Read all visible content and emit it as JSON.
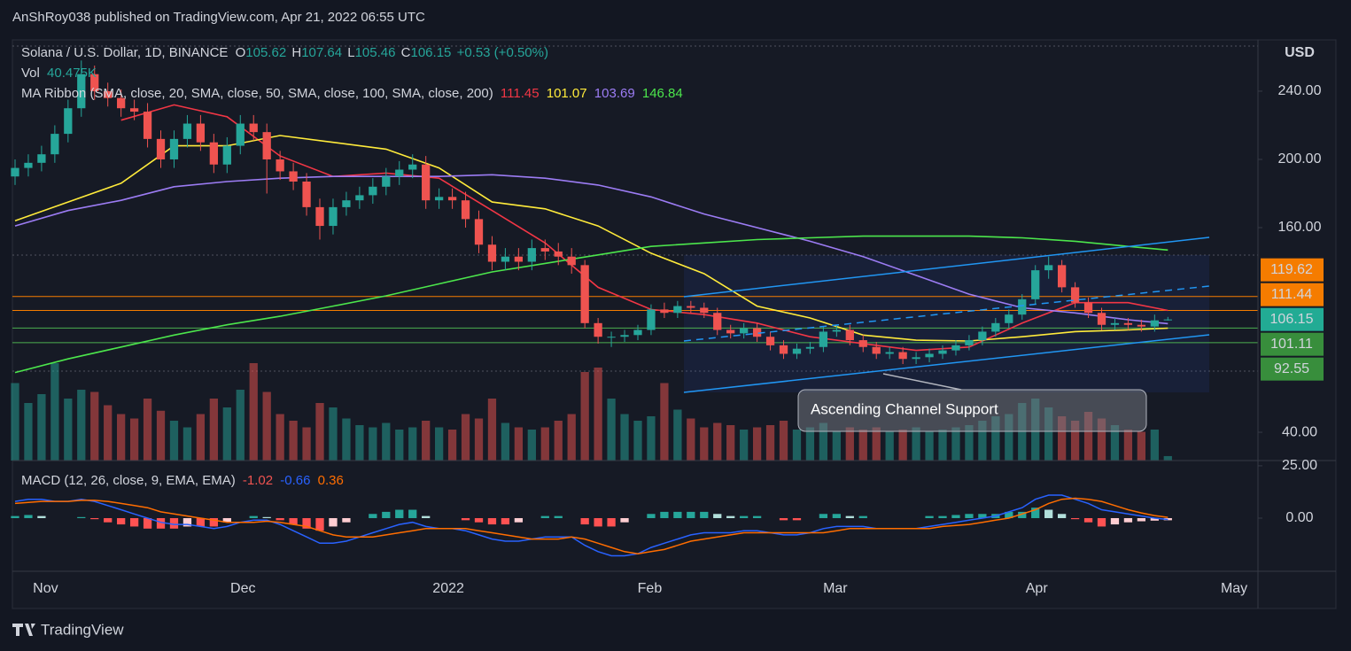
{
  "header": {
    "published": "AnShRoy038 published on TradingView.com, Apr 21, 2022 06:55 UTC"
  },
  "footer": {
    "brand": "TradingView"
  },
  "chart_data": [
    {
      "type": "candlestick",
      "title": "Solana / U.S. Dollar, 1D, BINANCE",
      "currency": "USD",
      "ohlc_letters": [
        "O",
        "H",
        "L",
        "C"
      ],
      "change": "+0.53 (+0.50%)",
      "colors": {
        "up": "#26a69a",
        "down": "#ef5350"
      },
      "xlim": [
        -0.2,
        93.8
      ],
      "xticks": [
        {
          "value": 2.3,
          "label": "Nov"
        },
        {
          "value": 17.2,
          "label": "Dec"
        },
        {
          "value": 32.7,
          "label": "2022"
        },
        {
          "value": 47.9,
          "label": "Feb"
        },
        {
          "value": 61.9,
          "label": "Mar"
        },
        {
          "value": 77.1,
          "label": "Apr"
        },
        {
          "value": 92.0,
          "label": "May"
        }
      ],
      "ylim": [
        23.4,
        270.1
      ],
      "yticks": [
        {
          "value": 240,
          "label": "240.00"
        },
        {
          "value": 200,
          "label": "200.00"
        },
        {
          "value": 160,
          "label": "160.00"
        },
        {
          "value": 40,
          "label": "40.00"
        }
      ],
      "open": [
        190,
        195,
        198,
        203,
        215,
        230,
        250,
        240,
        236,
        230,
        228,
        212,
        200,
        212,
        221,
        210,
        197,
        208,
        221,
        216,
        200,
        193,
        187,
        172,
        161,
        172,
        176,
        179,
        184,
        190,
        194,
        197,
        176,
        178,
        176,
        165,
        150,
        140,
        143,
        140,
        148,
        146,
        143,
        138,
        104,
        96,
        96,
        97,
        100,
        112,
        110,
        114,
        113,
        110,
        100,
        98,
        101,
        96,
        91,
        86,
        89,
        90,
        99,
        100,
        94,
        90,
        86,
        87,
        83,
        84,
        86,
        88,
        91,
        94,
        99,
        104,
        109,
        118,
        135,
        138,
        125,
        116,
        110,
        103,
        104,
        103,
        102,
        105.62
      ],
      "high": [
        200,
        203,
        208,
        220,
        235,
        258,
        255,
        245,
        241,
        235,
        233,
        217,
        217,
        226,
        226,
        215,
        213,
        226,
        226,
        221,
        205,
        198,
        192,
        177,
        177,
        181,
        184,
        189,
        195,
        199,
        203,
        202,
        183,
        183,
        181,
        170,
        155,
        148,
        148,
        153,
        153,
        151,
        148,
        141,
        107,
        99,
        100,
        103,
        115,
        116,
        117,
        117,
        116,
        113,
        103,
        104,
        104,
        99,
        94,
        92,
        93,
        102,
        103,
        103,
        97,
        93,
        90,
        90,
        87,
        89,
        91,
        94,
        97,
        102,
        107,
        112,
        121,
        138,
        143,
        141,
        128,
        119,
        113,
        107,
        107,
        106,
        109,
        107.64
      ],
      "low": [
        185,
        190,
        193,
        198,
        210,
        225,
        235,
        231,
        225,
        223,
        207,
        195,
        195,
        207,
        205,
        192,
        192,
        203,
        211,
        180,
        188,
        182,
        167,
        153,
        156,
        167,
        171,
        174,
        179,
        185,
        189,
        171,
        171,
        171,
        160,
        145,
        135,
        135,
        135,
        135,
        141,
        138,
        133,
        101,
        92,
        90,
        93,
        94,
        97,
        107,
        107,
        110,
        107,
        97,
        95,
        95,
        93,
        88,
        83,
        83,
        86,
        87,
        96,
        91,
        87,
        83,
        83,
        80,
        80,
        81,
        83,
        85,
        88,
        91,
        96,
        101,
        106,
        115,
        130,
        122,
        113,
        107,
        100,
        100,
        100,
        99,
        99,
        105.46
      ],
      "close": [
        195,
        198,
        203,
        215,
        230,
        250,
        240,
        236,
        230,
        228,
        212,
        200,
        212,
        221,
        210,
        197,
        208,
        221,
        216,
        200,
        193,
        187,
        172,
        161,
        172,
        176,
        179,
        184,
        190,
        194,
        197,
        176,
        178,
        176,
        165,
        150,
        140,
        143,
        140,
        148,
        146,
        143,
        138,
        104,
        96,
        96,
        97,
        100,
        112,
        110,
        114,
        113,
        110,
        100,
        98,
        101,
        96,
        91,
        86,
        89,
        90,
        99,
        100,
        94,
        90,
        86,
        87,
        83,
        84,
        86,
        88,
        91,
        94,
        99,
        104,
        109,
        118,
        135,
        138,
        125,
        116,
        110,
        103,
        104,
        103,
        102,
        105.62,
        106.15
      ],
      "volume": {
        "name": "Vol",
        "ylim": [
          0,
          1000
        ],
        "last_value_label": "40.475K",
        "values": [
          700,
          520,
          600,
          880,
          560,
          640,
          620,
          500,
          420,
          380,
          560,
          450,
          360,
          300,
          420,
          560,
          480,
          640,
          880,
          620,
          420,
          360,
          300,
          520,
          480,
          380,
          320,
          300,
          340,
          280,
          300,
          360,
          300,
          280,
          420,
          380,
          560,
          340,
          300,
          280,
          300,
          360,
          420,
          800,
          840,
          560,
          420,
          360,
          400,
          700,
          460,
          380,
          300,
          340,
          320,
          280,
          300,
          320,
          360,
          280,
          300,
          340,
          260,
          300,
          280,
          300,
          260,
          280,
          300,
          260,
          280,
          300,
          320,
          360,
          400,
          420,
          520,
          560,
          480,
          400,
          360,
          440,
          380,
          320,
          280,
          260,
          280,
          40.475
        ]
      },
      "ma": {
        "title": "MA Ribbon (SMA, close, 20, SMA, close, 50, SMA, close, 100, SMA, close, 200)",
        "x": [
          0,
          4,
          8,
          12,
          16,
          20,
          24,
          28,
          32,
          36,
          40,
          44,
          48,
          52,
          56,
          60,
          64,
          68,
          72,
          76,
          80,
          84,
          87
        ],
        "series": [
          {
            "color": "#f23645",
            "values": [
              null,
              null,
              223,
              232,
              225,
              202,
              190,
              192,
              189,
              170,
              151,
              125,
              112,
              109,
              104,
              96,
              92,
              88,
              90,
              104,
              116,
              116,
              111.45
            ]
          },
          {
            "color": "#ffeb3b",
            "values": [
              164,
              175,
              186,
              208,
              208,
              214,
              210,
              206,
              195,
              175,
              171,
              161,
              145,
              133,
              114,
              107,
              97,
              94,
              93.5,
              96,
              99,
              100,
              101.07
            ]
          },
          {
            "color": "#9c7cf4",
            "values": [
              161,
              170,
              176,
              184,
              187,
              189,
              190,
              190,
              190,
              191,
              189,
              185,
              178,
              168,
              160,
              152,
              143,
              132,
              121,
              113,
              110,
              106,
              103.69
            ]
          },
          {
            "color": "#4ce64c",
            "values": [
              75,
              83,
              90,
              97,
              103,
              108,
              114,
              120,
              127,
              134,
              139,
              144,
              149,
              151,
              153,
              154,
              155,
              155,
              155,
              154,
              152,
              149,
              146.84
            ]
          }
        ]
      },
      "levels": [
        {
          "value": 119.62,
          "color": "#f57c00"
        },
        {
          "value": 111.44,
          "color": "#f57c00"
        },
        {
          "value": 101.11,
          "color": "#388e3c"
        },
        {
          "value": 92.55,
          "color": "#388e3c"
        }
      ],
      "annotation": "Ascending Channel Support"
    },
    {
      "type": "macd",
      "title": "MACD (12, 26, close, 9, EMA, EMA)",
      "ylim": [
        -25.4,
        27.5
      ],
      "yticks": [
        {
          "value": 25,
          "label": "25.00"
        },
        {
          "value": 0,
          "label": "0.00"
        }
      ],
      "histogram": [
        1,
        1.5,
        1,
        0,
        0,
        0.5,
        -0.5,
        -2,
        -3,
        -4,
        -5,
        -5,
        -5,
        -4,
        -4,
        -4,
        -2,
        0,
        1,
        0.5,
        -1,
        -3,
        -5,
        -6,
        -4,
        -2,
        0,
        2,
        3,
        4,
        4,
        1,
        0,
        0,
        -1,
        -2,
        -3,
        -3,
        -2,
        0,
        1,
        1,
        0,
        -3,
        -4,
        -4,
        -2,
        0,
        2,
        3,
        3,
        3,
        3,
        2,
        1,
        1,
        1,
        0,
        -1,
        -1,
        0,
        2,
        2,
        1,
        1,
        0,
        0,
        0,
        0,
        1,
        1,
        1.5,
        2,
        2,
        2,
        3,
        3,
        5,
        4,
        2,
        -0.5,
        -2,
        -4,
        -3,
        -2,
        -1.5,
        -1.2,
        -1.02
      ],
      "series": [
        {
          "color": "#2962ff",
          "values": [
            8,
            9,
            9,
            8,
            8,
            9,
            8,
            6,
            4,
            2,
            0,
            -2,
            -3,
            -3,
            -4,
            -5,
            -4,
            -2,
            -1,
            -1,
            -3,
            -6,
            -9,
            -12,
            -12,
            -11,
            -9,
            -7,
            -5,
            -3,
            -2,
            -4,
            -5,
            -5,
            -6,
            -8,
            -10,
            -11,
            -11,
            -10,
            -9,
            -9,
            -9,
            -13,
            -16,
            -18,
            -18,
            -17,
            -14,
            -12,
            -10,
            -8,
            -7,
            -7,
            -7,
            -6,
            -6,
            -7,
            -8,
            -8,
            -7,
            -5,
            -4,
            -4,
            -4,
            -5,
            -5,
            -5,
            -5,
            -4,
            -3,
            -2,
            -1,
            0,
            1,
            3,
            5,
            9,
            11,
            11,
            9,
            7,
            4,
            3,
            2,
            1,
            0,
            -0.66
          ]
        },
        {
          "color": "#ff6d00",
          "values": [
            7,
            7.5,
            8,
            8,
            8,
            8.5,
            8.5,
            8,
            7,
            6,
            5,
            3,
            2,
            1,
            0,
            -1,
            -2,
            -2,
            -2,
            -1.5,
            -2,
            -3,
            -4,
            -6,
            -8,
            -9,
            -9,
            -9,
            -8,
            -7,
            -6,
            -5,
            -5,
            -5,
            -5,
            -6,
            -7,
            -8,
            -9,
            -10,
            -10,
            -10,
            -9,
            -10,
            -12,
            -14,
            -16,
            -17,
            -16,
            -15,
            -13,
            -11,
            -10,
            -9,
            -8,
            -7,
            -7,
            -7,
            -7,
            -7,
            -7,
            -7,
            -6,
            -5,
            -5,
            -5,
            -5,
            -5,
            -5,
            -5,
            -4,
            -3.5,
            -3,
            -2,
            -1,
            0,
            2,
            4,
            7,
            9,
            9.5,
            9,
            8,
            6,
            4,
            2.5,
            1.2,
            0.36
          ]
        }
      ]
    }
  ]
}
